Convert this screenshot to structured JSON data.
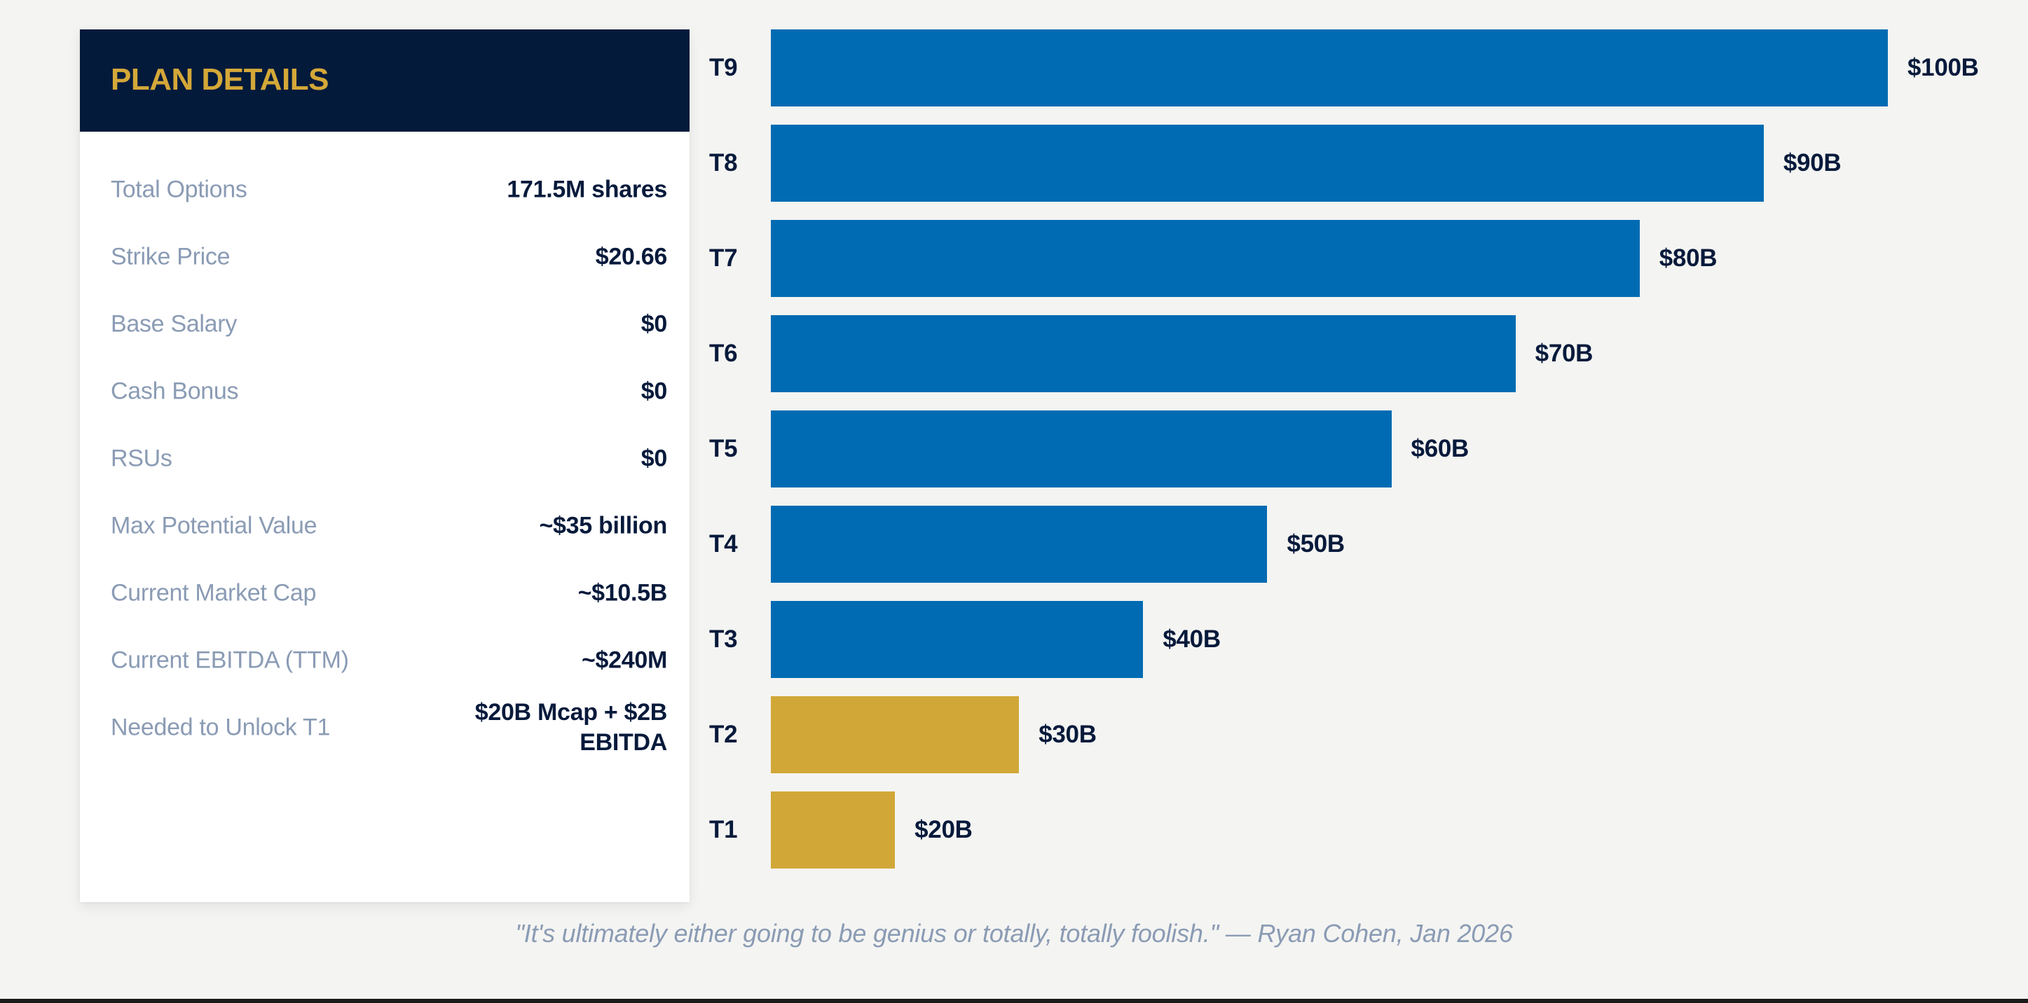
{
  "panel": {
    "title": "PLAN DETAILS",
    "rows": [
      {
        "label": "Total Options",
        "value": "171.5M shares"
      },
      {
        "label": "Strike Price",
        "value": "$20.66"
      },
      {
        "label": "Base Salary",
        "value": "$0"
      },
      {
        "label": "Cash Bonus",
        "value": "$0"
      },
      {
        "label": "RSUs",
        "value": "$0"
      },
      {
        "label": "Max Potential Value",
        "value": "~$35 billion"
      },
      {
        "label": "Current Market Cap",
        "value": "~$10.5B"
      },
      {
        "label": "Current EBITDA (TTM)",
        "value": "~$240M"
      },
      {
        "label": "Needed to Unlock T1",
        "value": "$20B Mcap + $2B EBITDA"
      }
    ]
  },
  "colors": {
    "header_bg": "#041a3b",
    "title_gold": "#d4a838",
    "bar_blue": "#006bb3",
    "bar_gold": "#d1a738",
    "label_gray": "#8a9bb4",
    "value_navy": "#071a3b",
    "background": "#f4f4f2"
  },
  "chart_data": {
    "type": "bar",
    "orientation": "horizontal",
    "title": "",
    "xlabel": "",
    "ylabel": "",
    "categories": [
      "T9",
      "T8",
      "T7",
      "T6",
      "T5",
      "T4",
      "T3",
      "T2",
      "T1"
    ],
    "values": [
      100,
      90,
      80,
      70,
      60,
      50,
      40,
      30,
      20
    ],
    "value_labels": [
      "$100B",
      "$90B",
      "$80B",
      "$70B",
      "$60B",
      "$50B",
      "$40B",
      "$30B",
      "$20B"
    ],
    "units": "market cap, $ billions",
    "xlim": [
      10,
      100
    ],
    "highlighted": [
      "T2",
      "T1"
    ],
    "grid": false,
    "legend": "none"
  },
  "quote": "\"It's ultimately either going to be genius or totally, totally foolish.\" — Ryan Cohen, Jan 2026"
}
